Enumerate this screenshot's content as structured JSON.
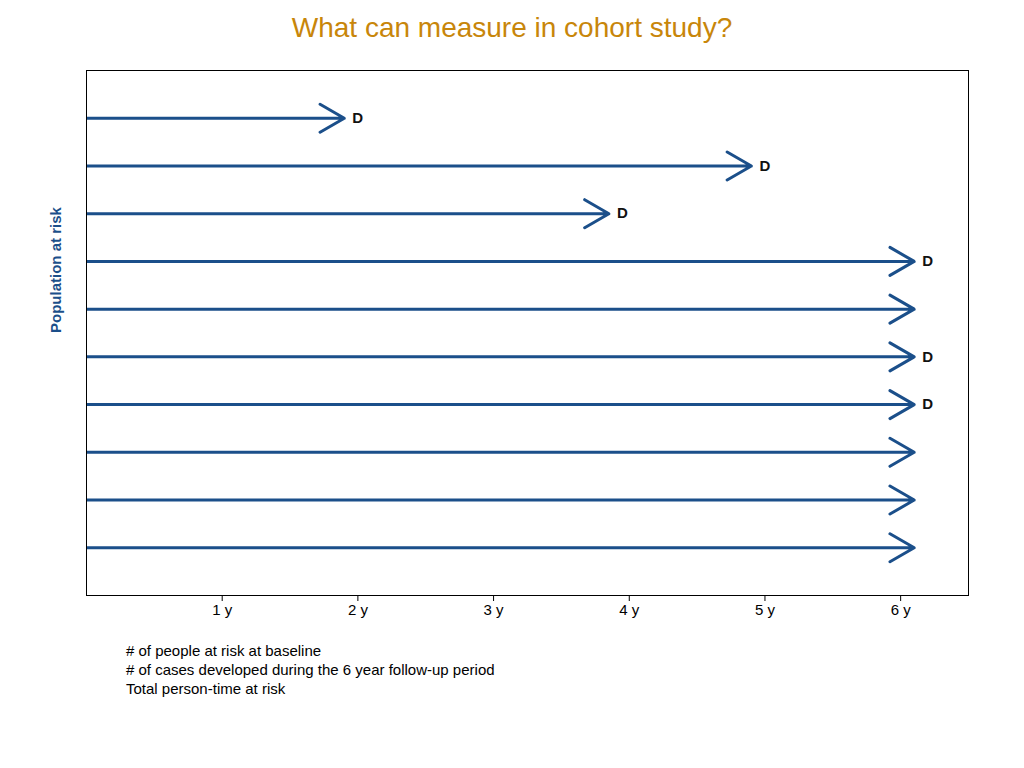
{
  "chart_data": {
    "type": "arrow",
    "title": "What can measure in cohort study?",
    "ylabel": "Population at risk",
    "color": "#1B4F8A",
    "xlim": [
      0,
      6.5
    ],
    "xticks": [
      {
        "value": 1,
        "label": "1 y"
      },
      {
        "value": 2,
        "label": "2 y"
      },
      {
        "value": 3,
        "label": "3 y"
      },
      {
        "value": 4,
        "label": "4 y"
      },
      {
        "value": 5,
        "label": "5 y"
      },
      {
        "value": 6,
        "label": "6 y"
      }
    ],
    "ylim": [
      0,
      11
    ],
    "tick_labels": "x",
    "grid": false,
    "arrows": [
      {
        "y": 10,
        "start": 0,
        "end": 1.9,
        "label": "D"
      },
      {
        "y": 9,
        "start": 0,
        "end": 4.9,
        "label": "D"
      },
      {
        "y": 8,
        "start": 0,
        "end": 3.85,
        "label": "D"
      },
      {
        "y": 7,
        "start": 0,
        "end": 6.1,
        "label": "D"
      },
      {
        "y": 6,
        "start": 0,
        "end": 6.1
      },
      {
        "y": 5,
        "start": 0,
        "end": 6.1,
        "label": "D"
      },
      {
        "y": 4,
        "start": 0,
        "end": 6.1,
        "label": "D"
      },
      {
        "y": 3,
        "start": 0,
        "end": 6.1
      },
      {
        "y": 2,
        "start": 0,
        "end": 6.1
      },
      {
        "y": 1,
        "start": 0,
        "end": 6.1
      }
    ],
    "annotations": [
      "# of people at risk at baseline",
      "# of cases developed during the 6 year follow-up period",
      "Total person-time at risk"
    ]
  }
}
